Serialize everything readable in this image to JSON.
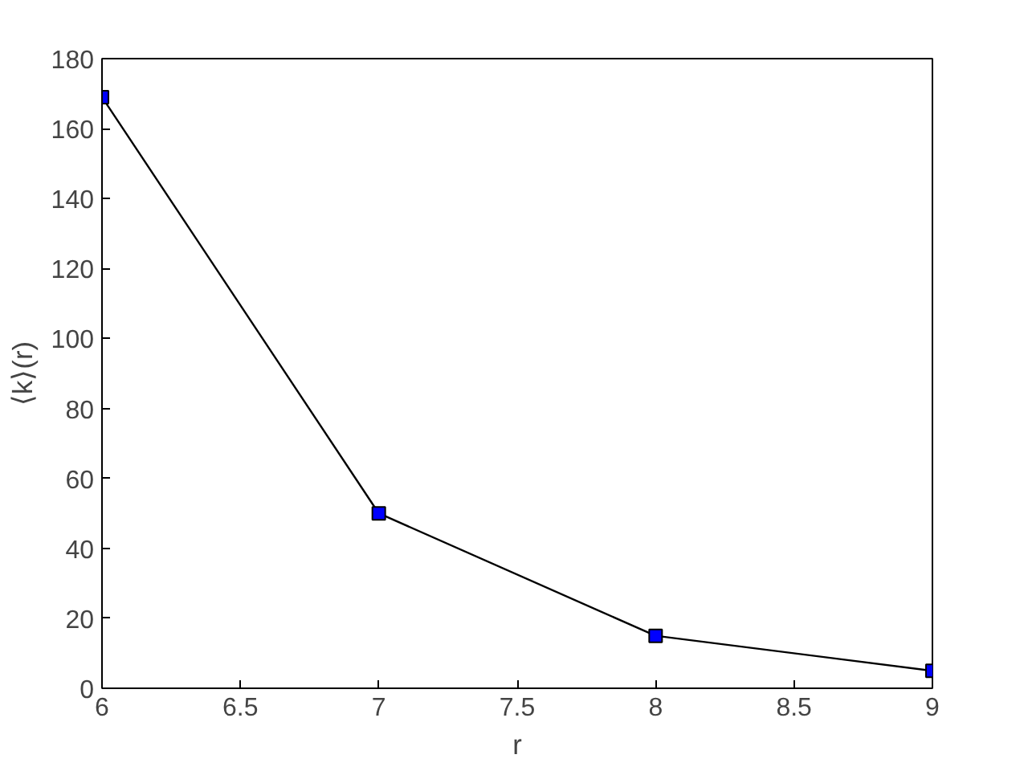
{
  "chart_data": {
    "type": "line",
    "xlabel": "r",
    "ylabel": "⟨k⟩(r)",
    "x": [
      6,
      7,
      8,
      9
    ],
    "series": [
      {
        "color": "#0000ff",
        "values": [
          169,
          50,
          15,
          5
        ]
      }
    ],
    "xlim": [
      6,
      9
    ],
    "xticks": [
      6,
      6.5,
      7,
      7.5,
      8,
      8.5,
      9
    ],
    "ylim": [
      0,
      180
    ],
    "yticks": [
      0,
      20,
      40,
      60,
      80,
      100,
      120,
      140,
      160,
      180
    ],
    "grid": false,
    "marker": "square",
    "line_style": "solid"
  }
}
